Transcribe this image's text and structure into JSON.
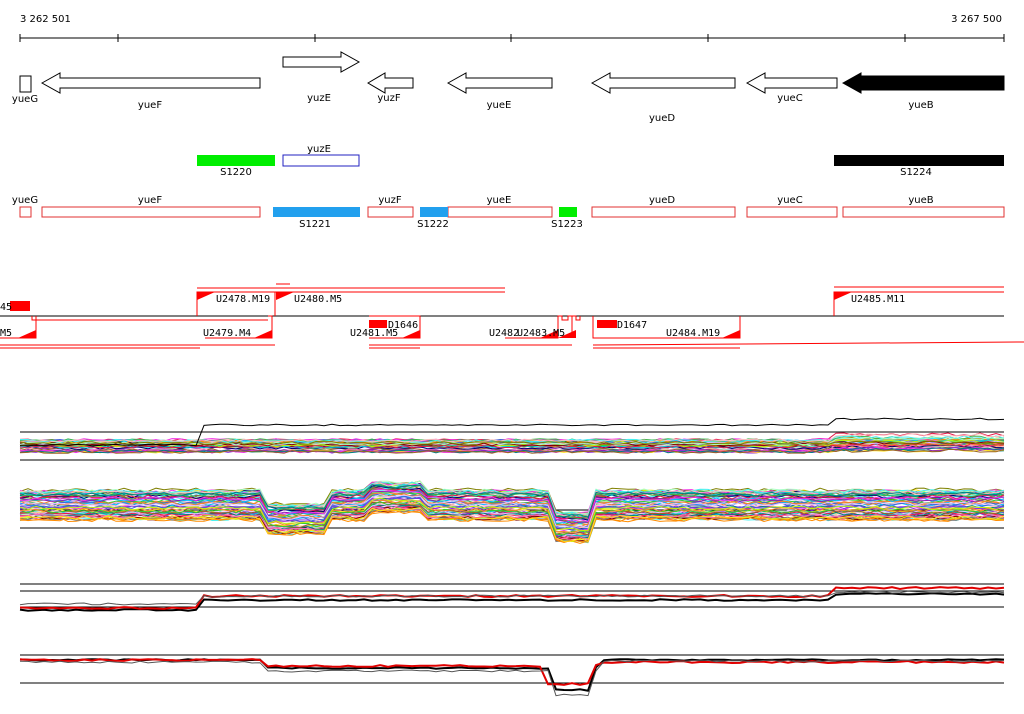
{
  "ruler": {
    "start": "3 262 501",
    "end": "3 267 500"
  },
  "genes": [
    {
      "name": "yueG",
      "strand": "-",
      "filled": false
    },
    {
      "name": "yueF",
      "strand": "-",
      "filled": false
    },
    {
      "name": "yuzE",
      "strand": "+",
      "filled": false
    },
    {
      "name": "yuzF",
      "strand": "-",
      "filled": false
    },
    {
      "name": "yueE",
      "strand": "-",
      "filled": false
    },
    {
      "name": "yueD",
      "strand": "-",
      "filled": false
    },
    {
      "name": "yueC",
      "strand": "-",
      "filled": false
    },
    {
      "name": "yueB",
      "strand": "-",
      "filled": true
    }
  ],
  "features_row1": [
    {
      "name": "S1220",
      "color": "#00ee00"
    },
    {
      "name": "yuzE",
      "color": "#2020c0"
    },
    {
      "name": "S1224",
      "color": "#000000"
    }
  ],
  "features_row2": [
    {
      "name": "yueG",
      "color": "#e03030"
    },
    {
      "name": "yueF",
      "color": "#e03030"
    },
    {
      "name": "S1221",
      "color": "#22a0ee"
    },
    {
      "name": "yuzF",
      "color": "#e03030"
    },
    {
      "name": "S1222",
      "color": "#22a0ee"
    },
    {
      "name": "yueE",
      "color": "#e03030"
    },
    {
      "name": "S1223",
      "color": "#00ee00"
    },
    {
      "name": "yueD",
      "color": "#e03030"
    },
    {
      "name": "yueC",
      "color": "#e03030"
    },
    {
      "name": "yueB",
      "color": "#e03030"
    }
  ],
  "segments": {
    "upper": [
      {
        "name": "U2478.M19"
      },
      {
        "name": "U2480.M5"
      },
      {
        "name": "U2485.M11"
      }
    ],
    "lower": [
      {
        "name": "M5"
      },
      {
        "name": "U2479.M4"
      },
      {
        "name": "U2481.M5"
      },
      {
        "name": "D1646"
      },
      {
        "name": "U2482"
      },
      {
        "name": "U2483.M5"
      },
      {
        "name": "D1647"
      },
      {
        "name": "U2484.M19"
      }
    ],
    "left_edge_label": "45"
  },
  "colors": {
    "gene_fill": "#000000",
    "feature_outline": "#e03030",
    "segment_red": "#ff0000",
    "profile_red": "#e00000"
  }
}
